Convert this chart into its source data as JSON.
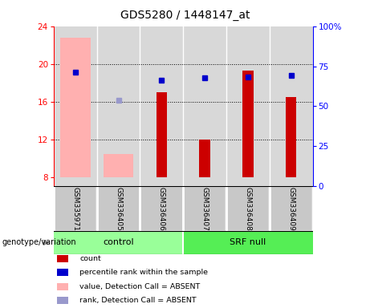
{
  "title": "GDS5280 / 1448147_at",
  "samples": [
    "GSM335971",
    "GSM336405",
    "GSM336406",
    "GSM336407",
    "GSM336408",
    "GSM336409"
  ],
  "ylim_left": [
    7,
    24
  ],
  "ylim_right": [
    0,
    100
  ],
  "yticks_left": [
    8,
    12,
    16,
    20,
    24
  ],
  "yticks_right": [
    0,
    25,
    50,
    75,
    100
  ],
  "yticklabels_right": [
    "0",
    "25",
    "50",
    "75",
    "100%"
  ],
  "bar_bottom": 8,
  "red_bars": {
    "GSM335971": null,
    "GSM336405": null,
    "GSM336406": 17.0,
    "GSM336407": 12.0,
    "GSM336408": 19.3,
    "GSM336409": 16.5
  },
  "pink_bars": {
    "GSM335971": 22.8,
    "GSM336405": 10.4,
    "GSM336406": null,
    "GSM336407": null,
    "GSM336408": null,
    "GSM336409": null
  },
  "blue_dots": {
    "GSM335971": 19.1,
    "GSM336405": null,
    "GSM336406": 18.3,
    "GSM336407": 18.5,
    "GSM336408": 18.6,
    "GSM336409": 18.8
  },
  "light_blue_dots": {
    "GSM335971": null,
    "GSM336405": 16.1,
    "GSM336406": null,
    "GSM336407": null,
    "GSM336408": null,
    "GSM336409": null
  },
  "red_color": "#CC0000",
  "pink_color": "#FFB0B0",
  "blue_color": "#0000CC",
  "light_blue_color": "#9999CC",
  "control_color": "#99FF99",
  "srfnull_color": "#55EE55",
  "legend_items": [
    {
      "label": "count",
      "color": "#CC0000"
    },
    {
      "label": "percentile rank within the sample",
      "color": "#0000CC"
    },
    {
      "label": "value, Detection Call = ABSENT",
      "color": "#FFB0B0"
    },
    {
      "label": "rank, Detection Call = ABSENT",
      "color": "#9999CC"
    }
  ],
  "plot_bg": "#D8D8D8",
  "cell_bg": "#C8C8C8",
  "cell_border": "#FFFFFF"
}
